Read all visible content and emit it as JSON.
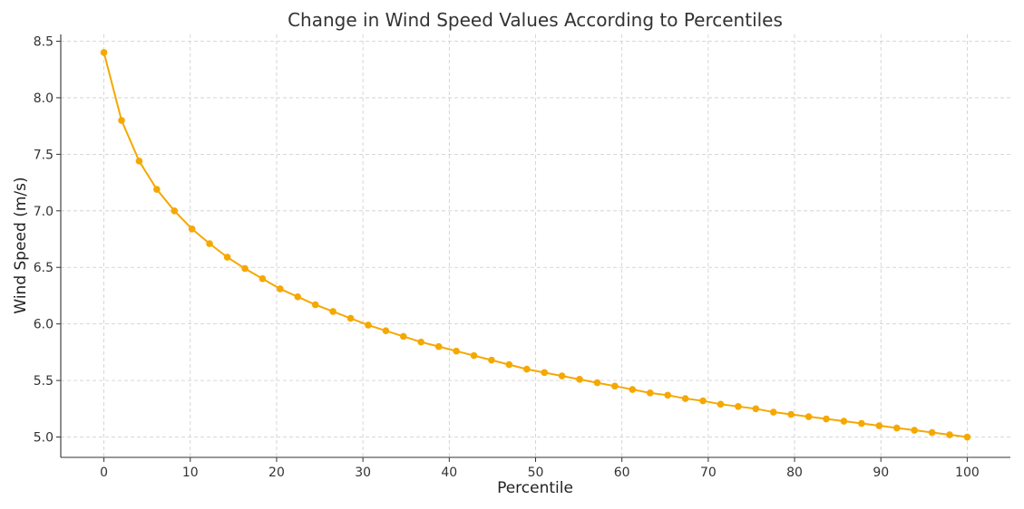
{
  "chart_data": {
    "type": "line",
    "title": "Change in Wind Speed Values According to Percentiles",
    "xlabel": "Percentile",
    "ylabel": "Wind Speed (m/s)",
    "xlim": [
      -5,
      105
    ],
    "ylim": [
      4.82,
      8.56
    ],
    "xticks": [
      0,
      10,
      20,
      30,
      40,
      50,
      60,
      70,
      80,
      90,
      100
    ],
    "yticks": [
      5.0,
      5.5,
      6.0,
      6.5,
      7.0,
      7.5,
      8.0,
      8.5
    ],
    "grid": true,
    "color": "#f5a800",
    "series": [
      {
        "x": [
          0,
          2.04,
          4.08,
          6.12,
          8.16,
          10.2,
          12.24,
          14.29,
          16.33,
          18.37,
          20.41,
          22.45,
          24.49,
          26.53,
          28.57,
          30.61,
          32.65,
          34.69,
          36.73,
          38.78,
          40.82,
          42.86,
          44.9,
          46.94,
          48.98,
          51.02,
          53.06,
          55.1,
          57.14,
          59.18,
          61.22,
          63.27,
          65.31,
          67.35,
          69.39,
          71.43,
          73.47,
          75.51,
          77.55,
          79.59,
          81.63,
          83.67,
          85.71,
          87.76,
          89.8,
          91.84,
          93.88,
          95.92,
          97.96,
          100
        ],
        "values": [
          8.4,
          7.8,
          7.44,
          7.19,
          7.0,
          6.84,
          6.71,
          6.59,
          6.49,
          6.4,
          6.31,
          6.24,
          6.17,
          6.11,
          6.05,
          5.99,
          5.94,
          5.89,
          5.84,
          5.8,
          5.76,
          5.72,
          5.68,
          5.64,
          5.6,
          5.57,
          5.54,
          5.51,
          5.48,
          5.45,
          5.42,
          5.39,
          5.37,
          5.34,
          5.32,
          5.29,
          5.27,
          5.25,
          5.22,
          5.2,
          5.18,
          5.16,
          5.14,
          5.12,
          5.1,
          5.08,
          5.06,
          5.04,
          5.02,
          5.0
        ]
      }
    ]
  }
}
